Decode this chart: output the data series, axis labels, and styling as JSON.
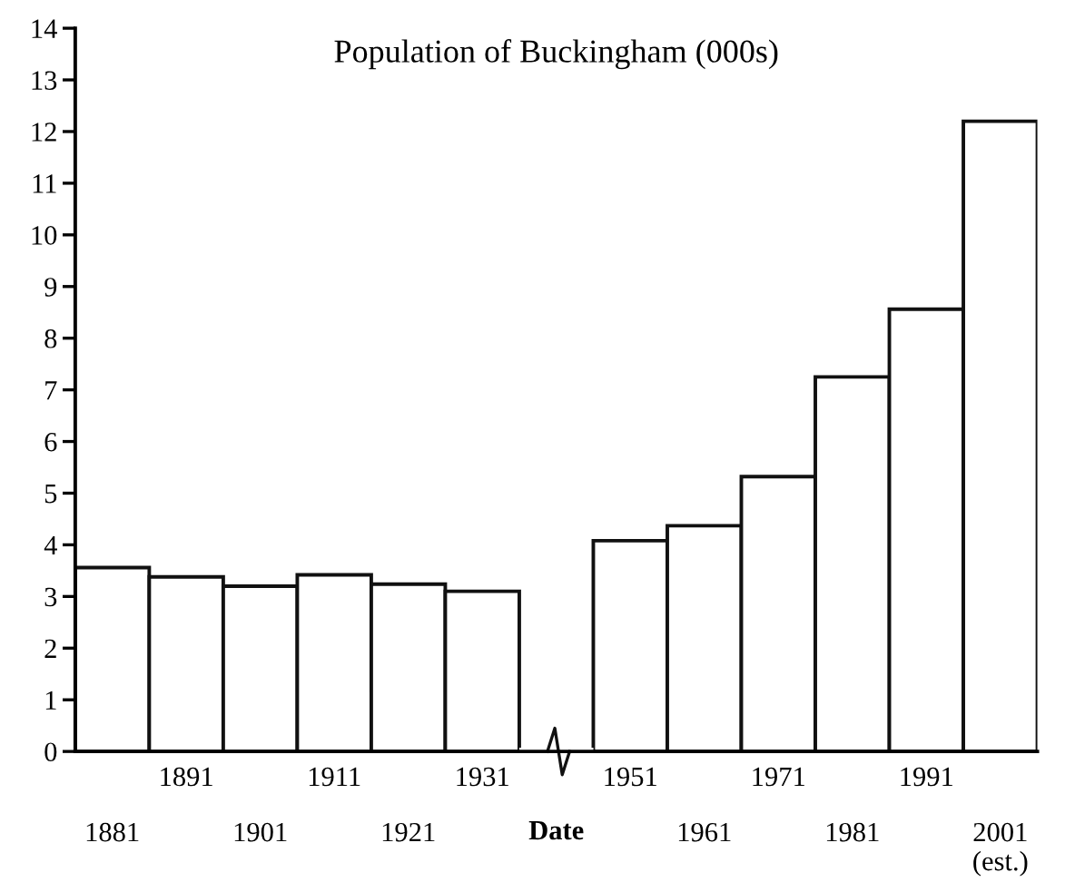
{
  "chart_data": {
    "type": "bar",
    "title": "Population of Buckingham (000s)",
    "xlabel": "Date",
    "categories": [
      "1881",
      "1891",
      "1901",
      "1911",
      "1921",
      "1931",
      null,
      "1951",
      "1961",
      "1971",
      "1981",
      "1991",
      "2001\n(est.)"
    ],
    "values": [
      3.56,
      3.38,
      3.2,
      3.42,
      3.24,
      3.1,
      null,
      4.08,
      4.37,
      5.32,
      7.25,
      8.56,
      12.2
    ],
    "color": "#ffffff",
    "ylim": [
      0,
      14
    ],
    "yticks": [
      0,
      1,
      2,
      3,
      4,
      5,
      6,
      7,
      8,
      9,
      10,
      11,
      12,
      13,
      14
    ],
    "grid": false
  }
}
